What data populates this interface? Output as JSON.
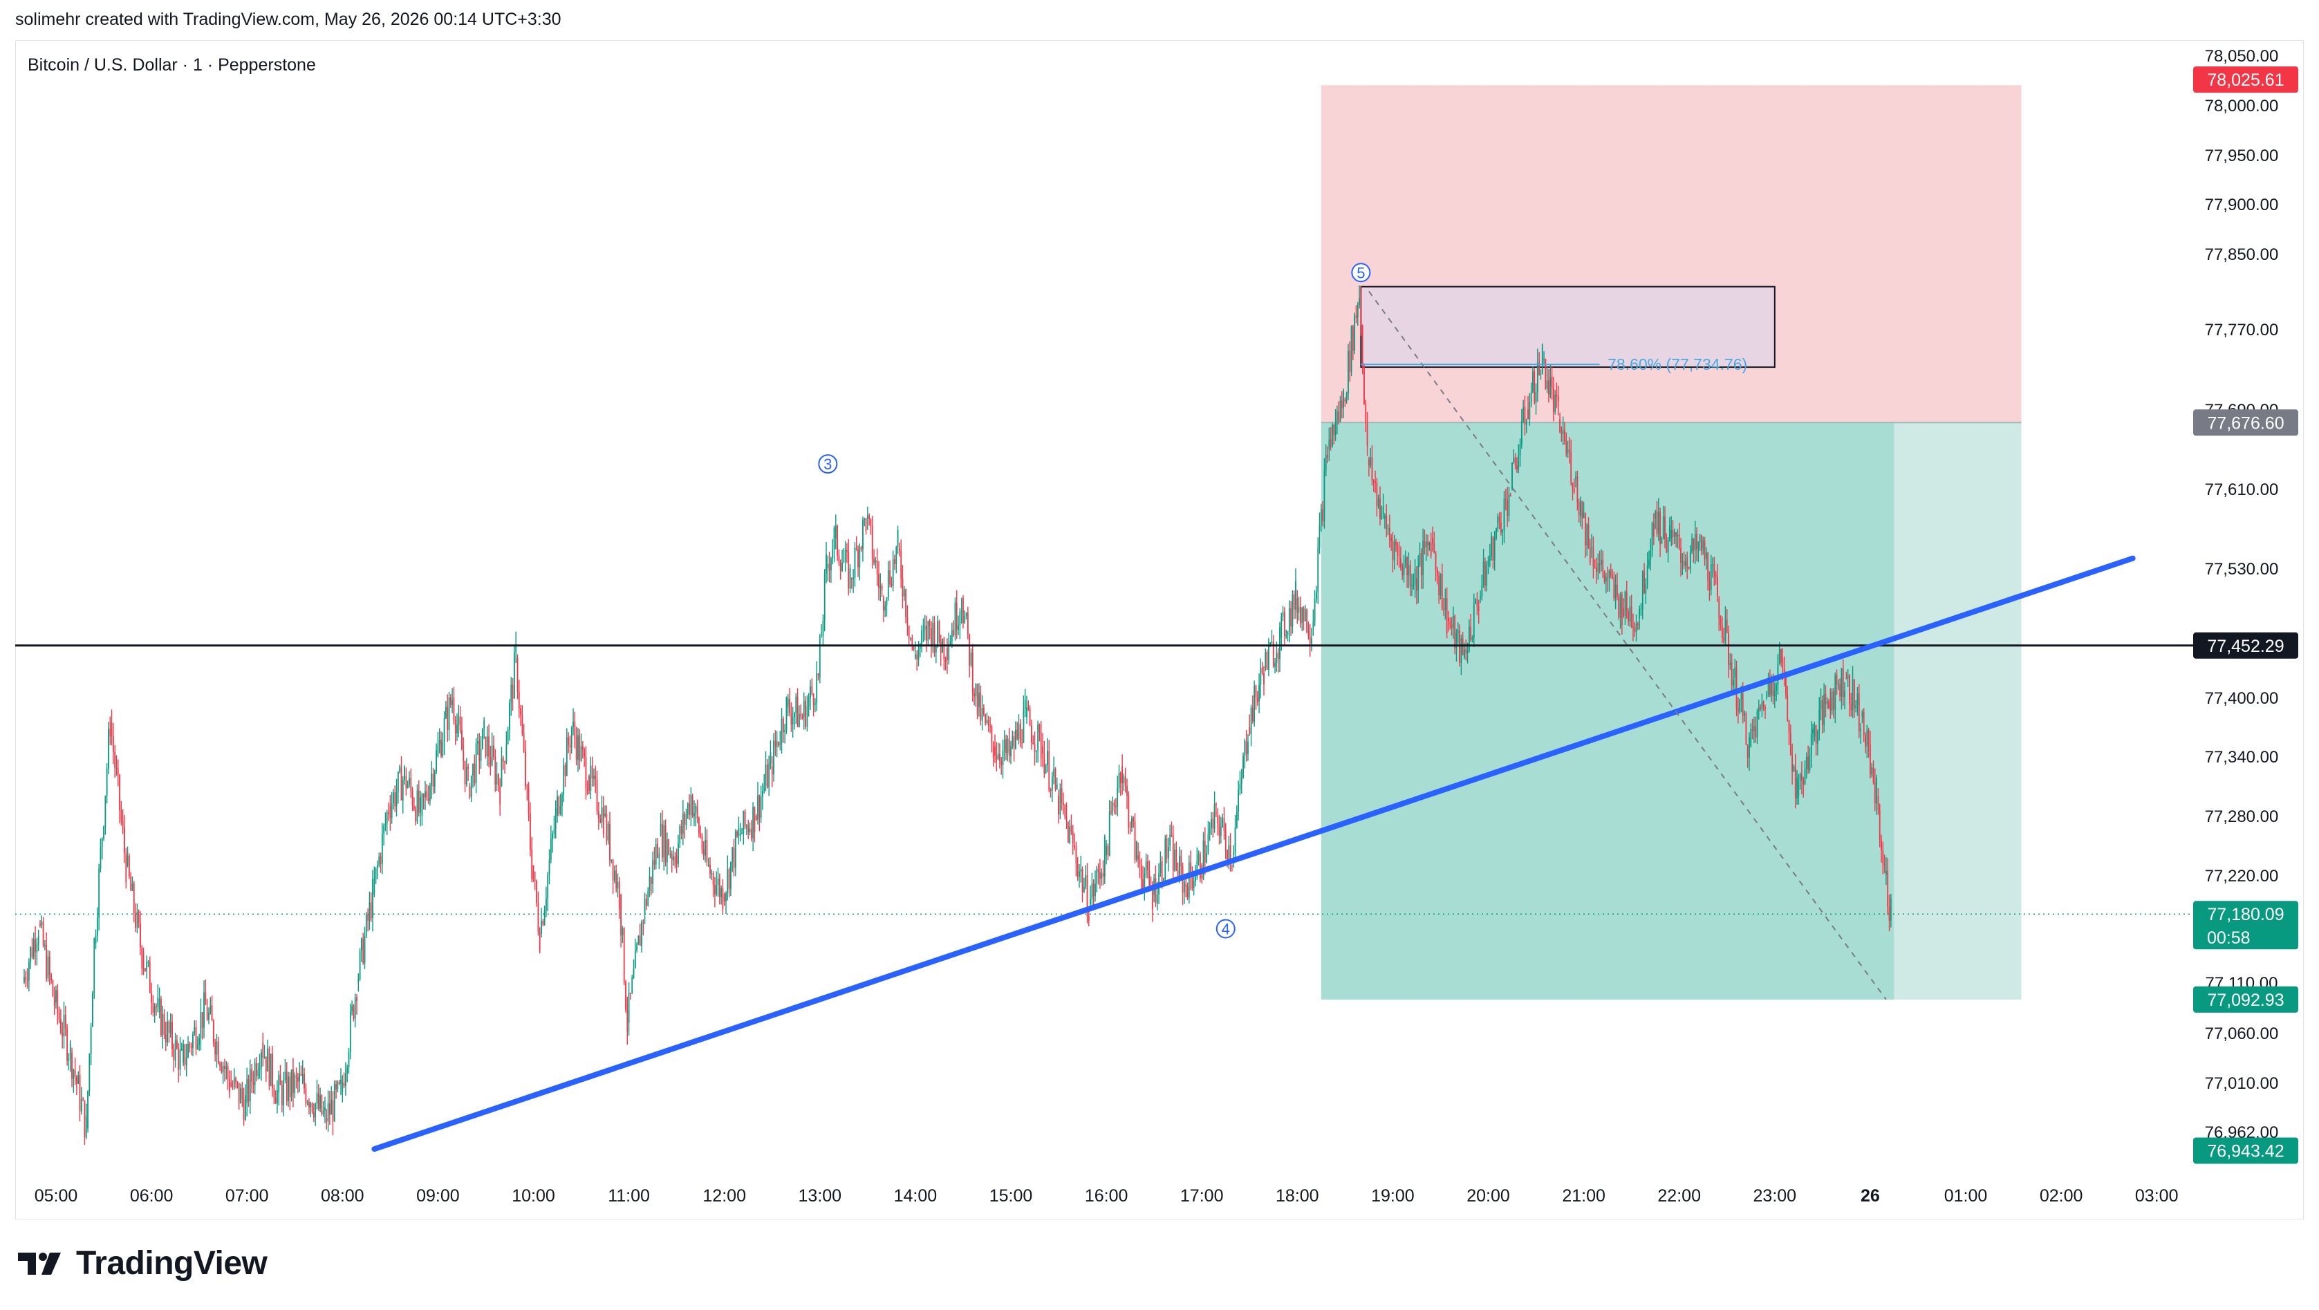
{
  "header": {
    "attribution": "solimehr created with TradingView.com, May 26, 2026 00:14 UTC+3:30"
  },
  "chart_title": "Bitcoin / U.S. Dollar · 1 · Pepperstone",
  "logo_text": "TradingView",
  "colors": {
    "up": "#089981",
    "down": "#f23645",
    "trendline": "#2962ff",
    "stop_zone": "#f9d4d7",
    "target_zone": "#a7ddd3",
    "target_zone_light": "#cfe9e5",
    "fib_box": "#e8d5e3",
    "wave_label": "#2962ff",
    "fib_label": "#4aa8e0"
  },
  "chart_data": {
    "type": "candlestick",
    "symbol": "Bitcoin / U.S. Dollar",
    "interval": "1",
    "source": "Pepperstone",
    "y_ticks": [
      78050,
      78000,
      77950,
      77900,
      77850,
      77770,
      77690,
      77610,
      77530,
      77400,
      77340,
      77280,
      77220,
      77110,
      77060,
      77010,
      76962
    ],
    "y_tick_labels": [
      "78,050.00",
      "78,000.00",
      "77,950.00",
      "77,900.00",
      "77,850.00",
      "77,770.00",
      "77,690.00",
      "77,610.00",
      "77,530.00",
      "77,400.00",
      "77,340.00",
      "77,280.00",
      "77,220.00",
      "77,110.00",
      "77,060.00",
      "77,010.00",
      "76,962.00"
    ],
    "x_ticks": [
      "05:00",
      "06:00",
      "07:00",
      "08:00",
      "09:00",
      "10:00",
      "11:00",
      "12:00",
      "13:00",
      "14:00",
      "15:00",
      "16:00",
      "17:00",
      "18:00",
      "19:00",
      "20:00",
      "21:00",
      "22:00",
      "23:00",
      "26",
      "01:00",
      "02:00",
      "03:00"
    ],
    "price_tags": [
      {
        "label": "78,025.61",
        "price": 78025.61,
        "role": "stop",
        "color": "#f23645"
      },
      {
        "label": "77,676.60",
        "price": 77676.6,
        "role": "entry",
        "color": "#787b86"
      },
      {
        "label": "77,452.29",
        "price": 77452.29,
        "role": "horizontal-line",
        "color": "#131722"
      },
      {
        "label": "77,180.09",
        "price": 77180.09,
        "role": "last-price",
        "countdown": "00:58",
        "color": "#089981"
      },
      {
        "label": "77,092.93",
        "price": 77092.93,
        "role": "target",
        "color": "#089981"
      },
      {
        "label": "76,943.42",
        "price": 76943.42,
        "role": "low",
        "color": "#089981"
      }
    ],
    "horizontal_line": 77452.29,
    "last_price": 77180.09,
    "price_path": [
      [
        "04:40",
        77110
      ],
      [
        "04:50",
        77170
      ],
      [
        "05:00",
        77090
      ],
      [
        "05:10",
        77040
      ],
      [
        "05:20",
        76965
      ],
      [
        "05:25",
        77150
      ],
      [
        "05:35",
        77375
      ],
      [
        "05:45",
        77230
      ],
      [
        "05:55",
        77140
      ],
      [
        "06:05",
        77080
      ],
      [
        "06:20",
        77030
      ],
      [
        "06:35",
        77085
      ],
      [
        "06:50",
        77010
      ],
      [
        "07:00",
        76990
      ],
      [
        "07:10",
        77050
      ],
      [
        "07:20",
        77000
      ],
      [
        "07:35",
        77010
      ],
      [
        "07:50",
        76975
      ],
      [
        "08:00",
        77000
      ],
      [
        "08:10",
        77110
      ],
      [
        "08:20",
        77200
      ],
      [
        "08:30",
        77290
      ],
      [
        "08:40",
        77320
      ],
      [
        "08:50",
        77280
      ],
      [
        "09:00",
        77340
      ],
      [
        "09:10",
        77400
      ],
      [
        "09:20",
        77310
      ],
      [
        "09:30",
        77360
      ],
      [
        "09:40",
        77310
      ],
      [
        "09:50",
        77440
      ],
      [
        "10:00",
        77230
      ],
      [
        "10:05",
        77160
      ],
      [
        "10:15",
        77280
      ],
      [
        "10:25",
        77370
      ],
      [
        "10:35",
        77320
      ],
      [
        "10:45",
        77280
      ],
      [
        "10:55",
        77200
      ],
      [
        "11:00",
        77070
      ],
      [
        "11:10",
        77180
      ],
      [
        "11:20",
        77260
      ],
      [
        "11:30",
        77240
      ],
      [
        "11:40",
        77300
      ],
      [
        "11:50",
        77230
      ],
      [
        "12:00",
        77200
      ],
      [
        "12:10",
        77260
      ],
      [
        "12:20",
        77280
      ],
      [
        "12:30",
        77330
      ],
      [
        "12:40",
        77390
      ],
      [
        "12:50",
        77380
      ],
      [
        "13:00",
        77420
      ],
      [
        "13:05",
        77530
      ],
      [
        "13:10",
        77560
      ],
      [
        "13:20",
        77520
      ],
      [
        "13:30",
        77580
      ],
      [
        "13:40",
        77500
      ],
      [
        "13:50",
        77550
      ],
      [
        "14:00",
        77440
      ],
      [
        "14:10",
        77470
      ],
      [
        "14:20",
        77450
      ],
      [
        "14:30",
        77500
      ],
      [
        "14:40",
        77390
      ],
      [
        "14:50",
        77350
      ],
      [
        "15:00",
        77340
      ],
      [
        "15:10",
        77380
      ],
      [
        "15:20",
        77350
      ],
      [
        "15:30",
        77300
      ],
      [
        "15:40",
        77250
      ],
      [
        "15:50",
        77190
      ],
      [
        "16:00",
        77240
      ],
      [
        "16:10",
        77330
      ],
      [
        "16:20",
        77240
      ],
      [
        "16:30",
        77200
      ],
      [
        "16:40",
        77250
      ],
      [
        "16:50",
        77210
      ],
      [
        "17:00",
        77230
      ],
      [
        "17:10",
        77280
      ],
      [
        "17:20",
        77240
      ],
      [
        "17:30",
        77370
      ],
      [
        "17:40",
        77430
      ],
      [
        "17:50",
        77460
      ],
      [
        "18:00",
        77500
      ],
      [
        "18:10",
        77470
      ],
      [
        "18:20",
        77650
      ],
      [
        "18:30",
        77700
      ],
      [
        "18:40",
        77810
      ],
      [
        "18:45",
        77640
      ],
      [
        "18:55",
        77580
      ],
      [
        "19:05",
        77540
      ],
      [
        "19:15",
        77520
      ],
      [
        "19:25",
        77560
      ],
      [
        "19:35",
        77480
      ],
      [
        "19:45",
        77440
      ],
      [
        "19:55",
        77500
      ],
      [
        "20:05",
        77560
      ],
      [
        "20:15",
        77610
      ],
      [
        "20:25",
        77690
      ],
      [
        "20:35",
        77740
      ],
      [
        "20:45",
        77680
      ],
      [
        "20:55",
        77620
      ],
      [
        "21:05",
        77550
      ],
      [
        "21:15",
        77520
      ],
      [
        "21:25",
        77490
      ],
      [
        "21:35",
        77480
      ],
      [
        "21:45",
        77580
      ],
      [
        "21:55",
        77560
      ],
      [
        "22:05",
        77540
      ],
      [
        "22:15",
        77550
      ],
      [
        "22:25",
        77500
      ],
      [
        "22:35",
        77420
      ],
      [
        "22:45",
        77350
      ],
      [
        "22:55",
        77400
      ],
      [
        "23:05",
        77440
      ],
      [
        "23:15",
        77300
      ],
      [
        "23:25",
        77360
      ],
      [
        "23:35",
        77400
      ],
      [
        "23:45",
        77420
      ],
      [
        "23:55",
        77380
      ],
      [
        "00:05",
        77300
      ],
      [
        "00:10",
        77220
      ],
      [
        "00:14",
        77180
      ]
    ],
    "annotations": {
      "wave_labels": [
        {
          "label": "3",
          "time": "13:05",
          "price": 77635
        },
        {
          "label": "4",
          "time": "17:15",
          "price": 77165
        },
        {
          "label": "5",
          "time": "18:40",
          "price": 77830
        }
      ],
      "fib_label": "78.60% (77,734.76)",
      "fib_level": 77734.76,
      "fib_box": {
        "from_time": "18:40",
        "to_time": "23:00",
        "top": 77815,
        "bottom": 77732
      },
      "trendline": {
        "from": [
          "08:20",
          76945
        ],
        "to": [
          "02:45",
          77540
        ]
      },
      "position": {
        "type": "short",
        "start": "18:15",
        "end": "01:35",
        "entry": 77676.6,
        "stop": 78025.61,
        "target": 77092.93,
        "filled_until": "00:15"
      },
      "dashed_path": {
        "from": [
          "18:45",
          77810
        ],
        "to": [
          "00:10",
          77092.93
        ]
      }
    }
  }
}
